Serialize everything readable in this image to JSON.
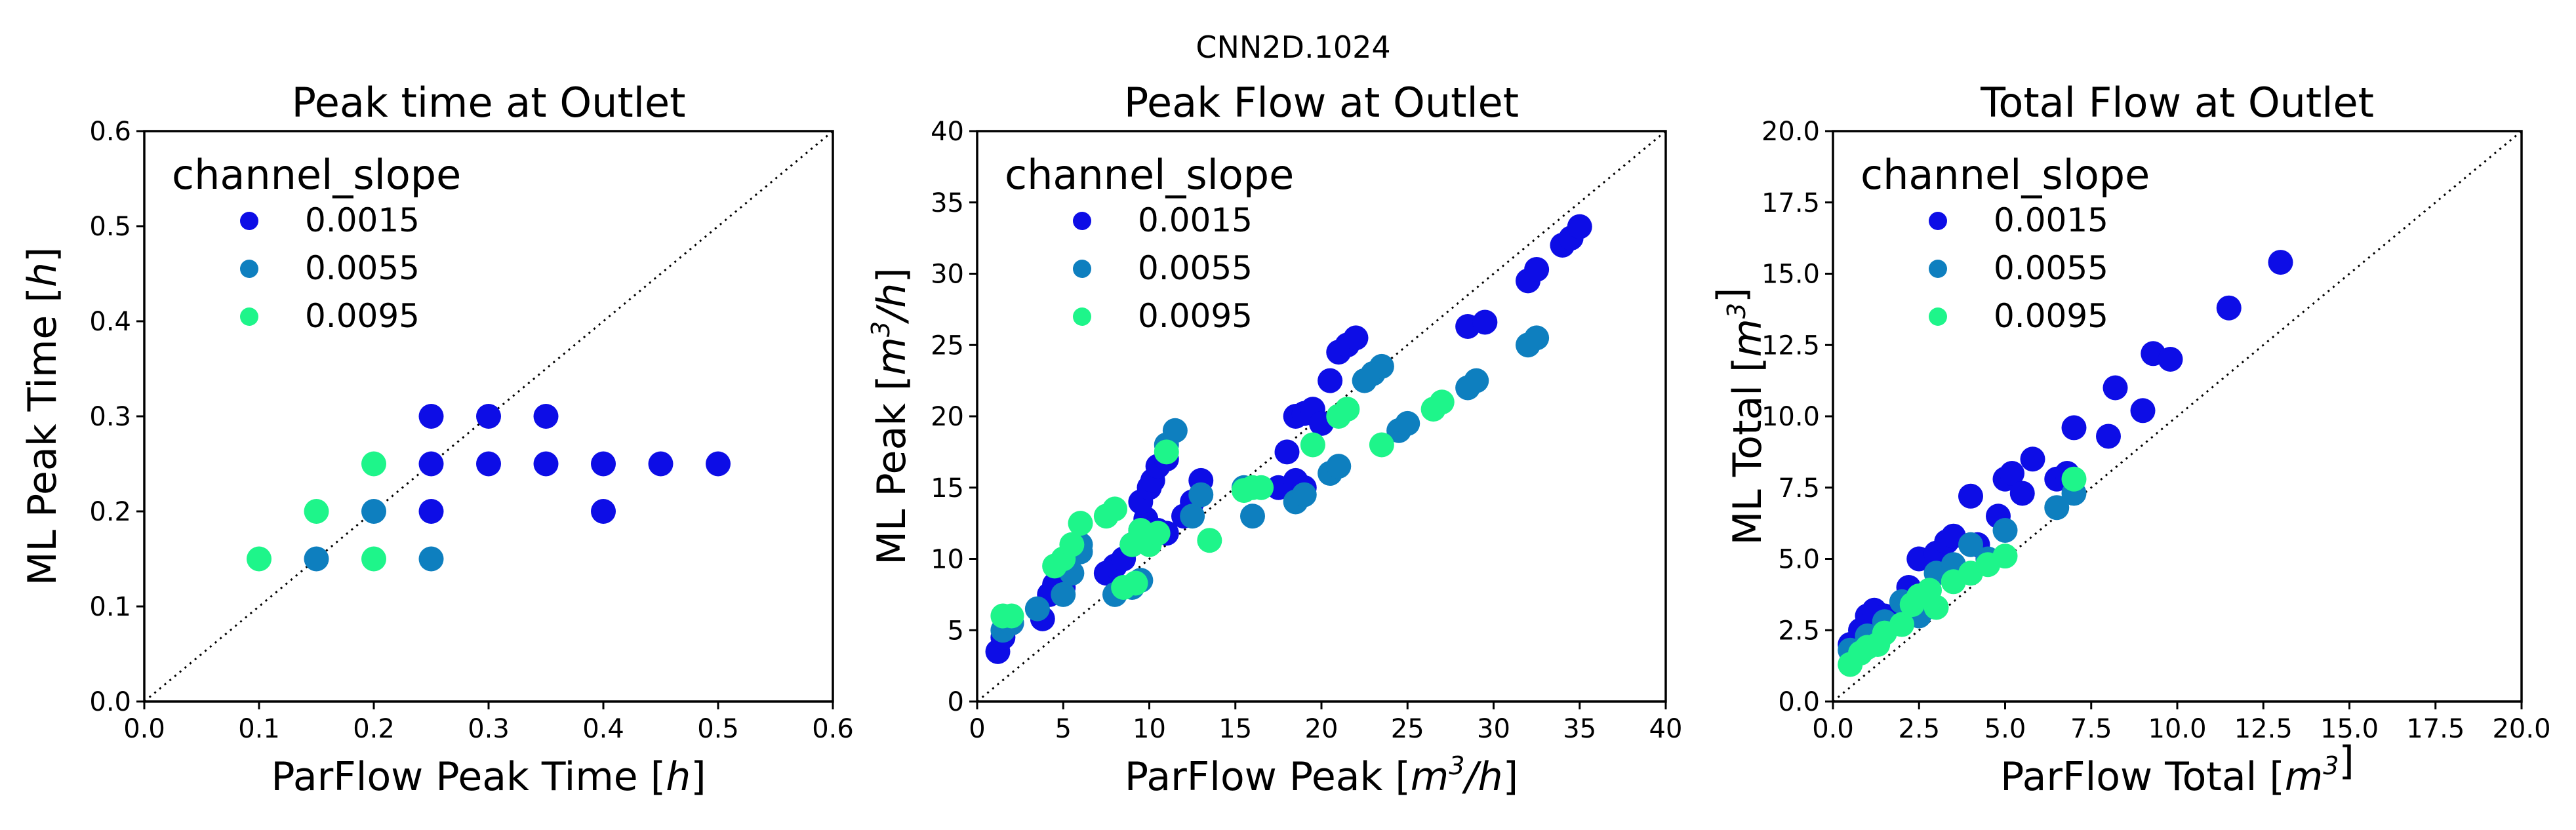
{
  "suptitle": "CNN2D.1024",
  "legend_title": "channel_slope",
  "series_colors": {
    "0.0015": "#0d0de6",
    "0.0055": "#0e7fbf",
    "0.0095": "#1ef58a"
  },
  "chart_data": [
    {
      "type": "scatter",
      "title": "Peak time at Outlet",
      "xlabel": "ParFlow Peak Time [h]",
      "ylabel": "ML Peak Time [h]",
      "xlim": [
        0,
        0.6
      ],
      "ylim": [
        0,
        0.6
      ],
      "xticks": [
        "0.0",
        "0.1",
        "0.2",
        "0.3",
        "0.4",
        "0.5",
        "0.6"
      ],
      "yticks": [
        "0.0",
        "0.1",
        "0.2",
        "0.3",
        "0.4",
        "0.5",
        "0.6"
      ],
      "legend": "top-left",
      "series": [
        {
          "name": "0.0015",
          "points": [
            [
              0.25,
              0.3
            ],
            [
              0.3,
              0.3
            ],
            [
              0.35,
              0.3
            ],
            [
              0.25,
              0.25
            ],
            [
              0.3,
              0.25
            ],
            [
              0.35,
              0.25
            ],
            [
              0.4,
              0.25
            ],
            [
              0.45,
              0.25
            ],
            [
              0.5,
              0.25
            ],
            [
              0.25,
              0.2
            ],
            [
              0.4,
              0.2
            ]
          ]
        },
        {
          "name": "0.0055",
          "points": [
            [
              0.2,
              0.2
            ],
            [
              0.15,
              0.15
            ],
            [
              0.25,
              0.15
            ]
          ]
        },
        {
          "name": "0.0095",
          "points": [
            [
              0.2,
              0.25
            ],
            [
              0.15,
              0.2
            ],
            [
              0.1,
              0.15
            ],
            [
              0.2,
              0.15
            ]
          ]
        }
      ]
    },
    {
      "type": "scatter",
      "title": "Peak Flow at Outlet",
      "xlabel": "ParFlow Peak [m3/h]",
      "ylabel": "ML Peak [m3/h]",
      "xlim": [
        0,
        40
      ],
      "ylim": [
        0,
        40
      ],
      "xticks": [
        "0",
        "5",
        "10",
        "15",
        "20",
        "25",
        "30",
        "35",
        "40"
      ],
      "yticks": [
        "0",
        "5",
        "10",
        "15",
        "20",
        "25",
        "30",
        "35",
        "40"
      ],
      "legend": "top-left",
      "series": [
        {
          "name": "0.0015",
          "points": [
            [
              1.2,
              3.5
            ],
            [
              1.5,
              4.5
            ],
            [
              2,
              5.5
            ],
            [
              3.8,
              5.8
            ],
            [
              4.2,
              7.5
            ],
            [
              4.5,
              8.2
            ],
            [
              5,
              8
            ],
            [
              7.5,
              9
            ],
            [
              8,
              9.5
            ],
            [
              8.5,
              10
            ],
            [
              9,
              11
            ],
            [
              9.5,
              12
            ],
            [
              9.8,
              12.8
            ],
            [
              9.5,
              14
            ],
            [
              10,
              15
            ],
            [
              10.2,
              15.5
            ],
            [
              10.5,
              16.5
            ],
            [
              11,
              17
            ],
            [
              12,
              13
            ],
            [
              12.5,
              14
            ],
            [
              13,
              15.5
            ],
            [
              10.5,
              12
            ],
            [
              11,
              11.8
            ],
            [
              17.5,
              15
            ],
            [
              18.5,
              15.5
            ],
            [
              19,
              15
            ],
            [
              18,
              17.5
            ],
            [
              18.5,
              20
            ],
            [
              19,
              20.2
            ],
            [
              19.5,
              20.5
            ],
            [
              20,
              19.5
            ],
            [
              20.5,
              22.5
            ],
            [
              21,
              24.5
            ],
            [
              21.5,
              25
            ],
            [
              22,
              25.5
            ],
            [
              28.5,
              26.3
            ],
            [
              29.5,
              26.6
            ],
            [
              32,
              29.5
            ],
            [
              32.5,
              30.3
            ],
            [
              34,
              32
            ],
            [
              34.5,
              32.5
            ],
            [
              35,
              33.3
            ]
          ]
        },
        {
          "name": "0.0055",
          "points": [
            [
              1.5,
              5
            ],
            [
              2,
              5.5
            ],
            [
              3.5,
              6.5
            ],
            [
              5,
              7.5
            ],
            [
              5.5,
              9
            ],
            [
              6,
              10.5
            ],
            [
              6,
              11
            ],
            [
              8,
              7.5
            ],
            [
              9,
              8
            ],
            [
              9.5,
              8.5
            ],
            [
              11,
              18
            ],
            [
              11.5,
              19
            ],
            [
              12.5,
              13
            ],
            [
              13,
              14.5
            ],
            [
              15.5,
              15
            ],
            [
              16,
              13
            ],
            [
              18.5,
              14
            ],
            [
              19,
              14.5
            ],
            [
              20.5,
              16
            ],
            [
              21,
              16.5
            ],
            [
              22.5,
              22.5
            ],
            [
              23,
              23
            ],
            [
              23.5,
              23.5
            ],
            [
              24.5,
              19
            ],
            [
              25,
              19.5
            ],
            [
              28.5,
              22
            ],
            [
              29,
              22.5
            ],
            [
              32,
              25
            ],
            [
              32.5,
              25.5
            ]
          ]
        },
        {
          "name": "0.0095",
          "points": [
            [
              1.5,
              6
            ],
            [
              2,
              6
            ],
            [
              4.5,
              9.5
            ],
            [
              5,
              10
            ],
            [
              5.5,
              11
            ],
            [
              6,
              12.5
            ],
            [
              7.5,
              13
            ],
            [
              8,
              13.5
            ],
            [
              9,
              11
            ],
            [
              9.5,
              12
            ],
            [
              8.5,
              8
            ],
            [
              9.2,
              8.3
            ],
            [
              10,
              11
            ],
            [
              10.5,
              11.8
            ],
            [
              11,
              17.5
            ],
            [
              13.5,
              11.3
            ],
            [
              15.5,
              14.8
            ],
            [
              16,
              15
            ],
            [
              16.5,
              15
            ],
            [
              19.5,
              18
            ],
            [
              21,
              20
            ],
            [
              21.5,
              20.5
            ],
            [
              23.5,
              18
            ],
            [
              26.5,
              20.5
            ],
            [
              27,
              21
            ]
          ]
        }
      ]
    },
    {
      "type": "scatter",
      "title": "Total Flow at Outlet",
      "xlabel": "ParFlow Total [m3]",
      "ylabel": "ML Total [m3]",
      "xlim": [
        0,
        20
      ],
      "ylim": [
        0,
        20
      ],
      "xticks": [
        "0.0",
        "2.5",
        "5.0",
        "7.5",
        "10.0",
        "12.5",
        "15.0",
        "17.5",
        "20.0"
      ],
      "yticks": [
        "0.0",
        "2.5",
        "5.0",
        "7.5",
        "10.0",
        "12.5",
        "15.0",
        "17.5",
        "20.0"
      ],
      "legend": "top-left",
      "series": [
        {
          "name": "0.0015",
          "points": [
            [
              0.5,
              2
            ],
            [
              0.8,
              2.5
            ],
            [
              1,
              3
            ],
            [
              1.2,
              3.2
            ],
            [
              1.5,
              3
            ],
            [
              2,
              3.5
            ],
            [
              2.2,
              4
            ],
            [
              2.5,
              5
            ],
            [
              3,
              5.2
            ],
            [
              3.3,
              5.6
            ],
            [
              3.5,
              5.8
            ],
            [
              4,
              7.2
            ],
            [
              4.2,
              5.5
            ],
            [
              4.8,
              6.5
            ],
            [
              5,
              7.8
            ],
            [
              5.2,
              8
            ],
            [
              5.5,
              7.3
            ],
            [
              5.8,
              8.5
            ],
            [
              6.5,
              7.8
            ],
            [
              6.8,
              8
            ],
            [
              7,
              9.6
            ],
            [
              8,
              9.3
            ],
            [
              8.2,
              11
            ],
            [
              9,
              10.2
            ],
            [
              9.3,
              12.2
            ],
            [
              9.8,
              12
            ],
            [
              11.5,
              13.8
            ],
            [
              13,
              15.4
            ]
          ]
        },
        {
          "name": "0.0055",
          "points": [
            [
              0.5,
              1.8
            ],
            [
              1,
              2.3
            ],
            [
              1.5,
              2.8
            ],
            [
              2,
              3.5
            ],
            [
              2.5,
              3
            ],
            [
              3,
              4.5
            ],
            [
              3.5,
              4.8
            ],
            [
              4,
              5.5
            ],
            [
              4.5,
              5
            ],
            [
              5,
              6
            ],
            [
              6.5,
              6.8
            ],
            [
              7,
              7.3
            ]
          ]
        },
        {
          "name": "0.0095",
          "points": [
            [
              0.5,
              1.3
            ],
            [
              0.8,
              1.7
            ],
            [
              1,
              1.9
            ],
            [
              1.3,
              2
            ],
            [
              1.5,
              2.4
            ],
            [
              2,
              2.7
            ],
            [
              2.3,
              3.4
            ],
            [
              2.5,
              3.7
            ],
            [
              2.8,
              3.9
            ],
            [
              3,
              3.3
            ],
            [
              3.5,
              4.2
            ],
            [
              4,
              4.5
            ],
            [
              4.5,
              4.8
            ],
            [
              5,
              5.1
            ],
            [
              7,
              7.8
            ]
          ]
        }
      ]
    }
  ]
}
